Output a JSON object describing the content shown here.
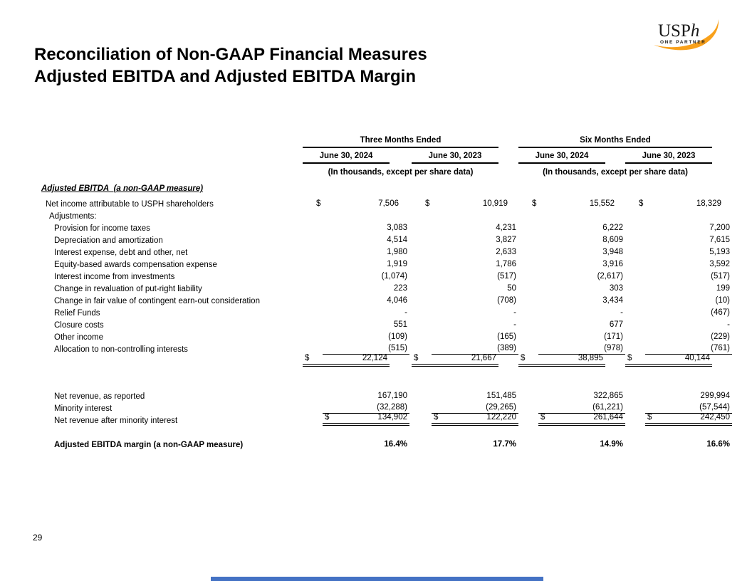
{
  "page": {
    "title_line1": "Reconciliation of Non-GAAP Financial Measures",
    "title_line2": "Adjusted EBITDA and Adjusted EBITDA Margin",
    "page_number": "29",
    "accent_bar_color": "#4472C4"
  },
  "logo": {
    "name": "USPh",
    "text_main": "USP",
    "text_italic": "h",
    "tagline": "ONE PARTNER",
    "swoosh_color": "#F9A11B",
    "text_color": "#1a1a1a"
  },
  "table": {
    "groups": [
      {
        "label": "Three Months Ended",
        "subnote": "(In thousands, except per share data)",
        "columns": [
          "June 30, 2024",
          "June 30, 2023"
        ]
      },
      {
        "label": "Six Months Ended",
        "subnote": "(In thousands, except per share data)",
        "columns": [
          "June 30, 2024",
          "June 30, 2023"
        ]
      }
    ],
    "section_heading": "Adjusted EBITDA  (a non-GAAP measure)",
    "rows": [
      {
        "label": "Net income attributable to USPH shareholders",
        "indent": "1",
        "dollar": true,
        "cells": [
          "7,506",
          "10,919",
          "15,552",
          "18,329"
        ]
      },
      {
        "label": "Adjustments:",
        "indent": "1b",
        "cells": [
          "",
          "",
          "",
          ""
        ]
      },
      {
        "label": "Provision for income taxes",
        "indent": "2",
        "cells": [
          "3,083",
          "4,231",
          "6,222",
          "7,200"
        ]
      },
      {
        "label": "Depreciation and amortization",
        "indent": "2",
        "cells": [
          "4,514",
          "3,827",
          "8,609",
          "7,615"
        ]
      },
      {
        "label": "Interest expense, debt and other, net",
        "indent": "2",
        "cells": [
          "1,980",
          "2,633",
          "3,948",
          "5,193"
        ]
      },
      {
        "label": "Equity-based awards compensation expense",
        "indent": "2",
        "cells": [
          "1,919",
          "1,786",
          "3,916",
          "3,592"
        ]
      },
      {
        "label": "Interest income from investments",
        "indent": "2",
        "cells": [
          "(1,074)",
          "(517)",
          "(2,617)",
          "(517)"
        ]
      },
      {
        "label": "Change in revaluation of put-right liability",
        "indent": "2",
        "cells": [
          "223",
          "50",
          "303",
          "199"
        ]
      },
      {
        "label": "Change in fair value of contingent earn-out consideration",
        "indent": "2",
        "cells": [
          "4,046",
          "(708)",
          "3,434",
          "(10)"
        ]
      },
      {
        "label": "Relief Funds",
        "indent": "2",
        "cells": [
          "-",
          "-",
          "-",
          "(467)"
        ]
      },
      {
        "label": "Closure costs",
        "indent": "2",
        "cells": [
          "551",
          "-",
          "677",
          "-"
        ]
      },
      {
        "label": "Other income",
        "indent": "2",
        "cells": [
          "(109)",
          "(165)",
          "(171)",
          "(229)"
        ]
      },
      {
        "label": "Allocation to non-controlling interests",
        "indent": "2",
        "rule": "s",
        "cells": [
          "(515)",
          "(389)",
          "(978)",
          "(761)"
        ]
      },
      {
        "label": "",
        "dollar": true,
        "rule": "d",
        "cells": [
          "22,124",
          "21,667",
          "38,895",
          "40,144"
        ]
      },
      {
        "type": "gap",
        "h": 32
      },
      {
        "label": "Net revenue, as reported",
        "indent": "2",
        "cells": [
          "167,190",
          "151,485",
          "322,865",
          "299,994"
        ]
      },
      {
        "label": "Minority interest",
        "indent": "2",
        "rule": "s",
        "cells": [
          "(32,288)",
          "(29,265)",
          "(61,221)",
          "(57,544)"
        ]
      },
      {
        "label": "Net revenue after minority interest",
        "indent": "2",
        "dollar": true,
        "rule": "d",
        "cells": [
          "134,902",
          "122,220",
          "261,644",
          "242,450"
        ]
      },
      {
        "type": "gap",
        "h": 17
      },
      {
        "label": "Adjusted EBITDA margin (a non-GAAP measure)",
        "indent": "2",
        "bold": true,
        "cells": [
          "16.4%",
          "17.7%",
          "14.9%",
          "16.6%"
        ]
      }
    ]
  }
}
